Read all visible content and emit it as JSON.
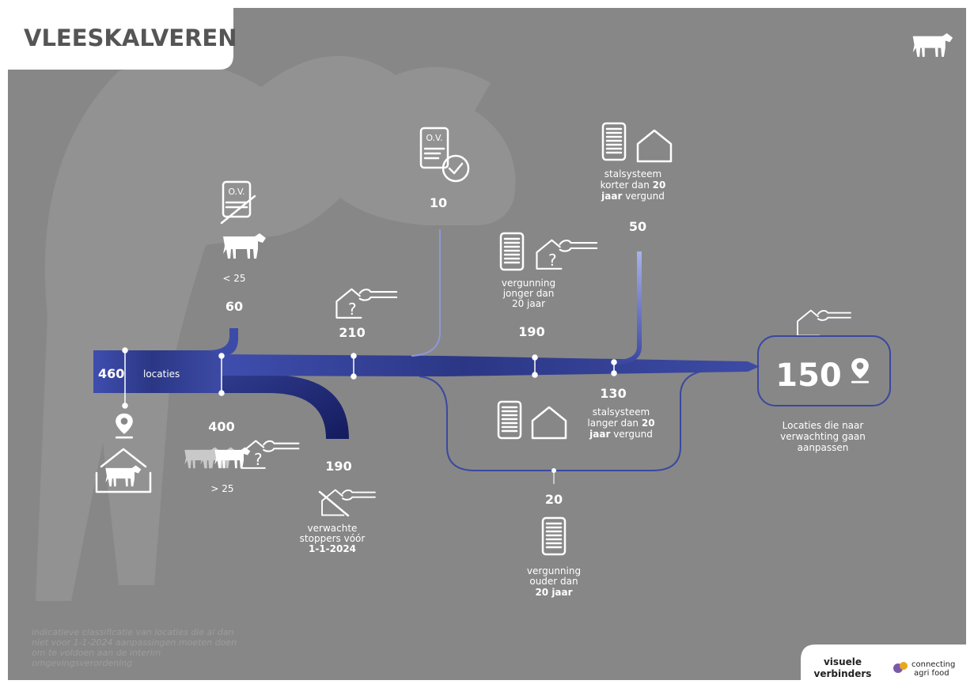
{
  "header": {
    "title": "VLEESKALVEREN"
  },
  "start": {
    "value": "460",
    "unit": "locaties"
  },
  "nodes": [
    {
      "value": "60",
      "icon_text": "O.V.",
      "label": [
        "< 25"
      ]
    },
    {
      "value": "400",
      "label": [
        "> 25"
      ]
    },
    {
      "value": "190",
      "label": [
        "verwachte",
        "stoppers vóór",
        "1-1-2024"
      ]
    },
    {
      "value": "210"
    },
    {
      "value": "10",
      "icon_text": "O.V."
    },
    {
      "value": "190",
      "label": [
        "vergunning",
        "jonger dan",
        "20 jaar"
      ]
    },
    {
      "value": "50",
      "label": [
        "stalsysteem",
        "korter dan ",
        "20",
        "jaar",
        " vergund"
      ]
    },
    {
      "value": "130",
      "label": [
        "stalsysteem",
        "langer dan ",
        "20",
        "jaar",
        " vergund"
      ]
    },
    {
      "value": "20",
      "label": [
        "vergunning",
        "ouder dan",
        "20 jaar"
      ]
    }
  ],
  "result": {
    "value": "150",
    "label": [
      "Locaties die naar",
      "verwachting gaan",
      "aanpassen"
    ]
  },
  "footnote": [
    "indicatieve classificatie van locaties die al dan",
    "niet voor 1-1-2024 aanpassingen moeten doen",
    "om te voldoen aan de interim",
    "omgevingsverordening"
  ],
  "logos": {
    "visuele": [
      "visuele",
      "verbinders"
    ],
    "agrifood": [
      "connecting",
      "agri food"
    ]
  }
}
